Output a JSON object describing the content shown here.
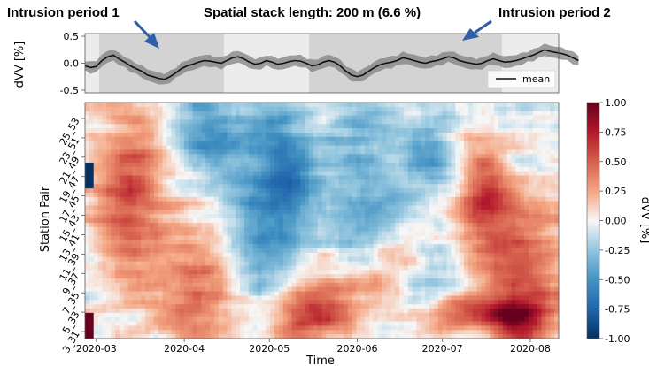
{
  "annotations": {
    "left": "Intrusion period 1",
    "center": "Spatial stack length: 200 m (6.6 %)",
    "right": "Intrusion period 2"
  },
  "colors": {
    "arrow": "#2f5fa7",
    "band": "#808080",
    "mean_line": "#111111",
    "shade_dark": "#d3d3d3",
    "shade_light": "#ececec",
    "cmap_neg": "#053061",
    "cmap_mid": "#f7f7f7",
    "cmap_pos": "#67001f"
  },
  "chart_data": [
    {
      "type": "line",
      "panel": "top",
      "ylabel": "dVV [%]",
      "ylim": [
        -0.55,
        0.55
      ],
      "y_ticks": [
        "0.5",
        "0.0",
        "-0.5"
      ],
      "y_tick_values": [
        0.5,
        0.0,
        -0.5
      ],
      "x_range": [
        "2020-02-26",
        "2020-08-11"
      ],
      "shaded_periods": [
        {
          "start": "2020-03-02",
          "end": "2020-04-15",
          "tone": "dark"
        },
        {
          "start": "2020-04-15",
          "end": "2020-05-15",
          "tone": "light"
        },
        {
          "start": "2020-05-15",
          "end": "2020-07-22",
          "tone": "dark"
        },
        {
          "start": "2020-07-22",
          "end": "2020-08-11",
          "tone": "light"
        }
      ],
      "legend": {
        "label": "mean",
        "placement": "lower-right"
      },
      "series": [
        {
          "name": "mean",
          "x_start": "2020-02-26",
          "step_days": 2,
          "values": [
            -0.05,
            -0.08,
            -0.06,
            0.05,
            0.12,
            0.15,
            0.08,
            0.02,
            -0.05,
            -0.1,
            -0.15,
            -0.22,
            -0.25,
            -0.28,
            -0.3,
            -0.25,
            -0.18,
            -0.1,
            -0.05,
            -0.02,
            0.02,
            0.05,
            0.04,
            0.02,
            0.0,
            0.05,
            0.1,
            0.12,
            0.08,
            0.02,
            -0.02,
            0.0,
            0.05,
            0.02,
            -0.02,
            0.0,
            0.03,
            0.05,
            0.04,
            0.0,
            -0.05,
            -0.03,
            0.02,
            0.05,
            0.02,
            -0.05,
            -0.15,
            -0.22,
            -0.25,
            -0.22,
            -0.15,
            -0.08,
            -0.03,
            0.0,
            0.02,
            0.05,
            0.1,
            0.08,
            0.05,
            0.02,
            0.0,
            0.03,
            0.05,
            0.08,
            0.12,
            0.1,
            0.05,
            0.02,
            0.0,
            -0.02,
            0.0,
            0.05,
            0.08,
            0.05,
            0.02,
            0.03,
            0.05,
            0.08,
            0.12,
            0.15,
            0.2,
            0.25,
            0.22,
            0.2,
            0.18,
            0.15,
            0.1,
            0.05
          ],
          "band_halfwidth": 0.1
        }
      ]
    },
    {
      "type": "heatmap",
      "panel": "bottom",
      "ylabel": "Station Pair",
      "xlabel": "Time",
      "x_range": [
        "2020-02-26",
        "2020-08-11"
      ],
      "x_ticks": [
        "2020-03",
        "2020-04",
        "2020-05",
        "2020-06",
        "2020-07",
        "2020-08"
      ],
      "x_tick_dates": [
        "2020-03-01",
        "2020-04-01",
        "2020-05-01",
        "2020-06-01",
        "2020-07-01",
        "2020-08-01"
      ],
      "y_ticks": [
        "3_31",
        "5_33",
        "7_35",
        "9_37",
        "11_39",
        "13_41",
        "15_43",
        "17_45",
        "19_47",
        "21_49",
        "23_51",
        "25_53"
      ],
      "rows": 55,
      "cols": 110,
      "seed": 7,
      "clim": [
        -1.0,
        1.0
      ],
      "colorbar": {
        "label": "dVV [%]",
        "ticks": [
          "1.00",
          "0.75",
          "0.50",
          "0.25",
          "0.00",
          "-0.25",
          "-0.50",
          "-0.75",
          "-1.00"
        ],
        "tick_values": [
          1.0,
          0.75,
          0.5,
          0.25,
          0.0,
          -0.25,
          -0.5,
          -0.75,
          -1.0
        ]
      },
      "features": [
        {
          "col": 0.25,
          "row": 0.1,
          "sc": 0.05,
          "sr": 0.15,
          "amp": -0.45
        },
        {
          "col": 0.09,
          "row": 0.4,
          "sc": 0.05,
          "sr": 0.25,
          "amp": 0.55
        },
        {
          "col": 0.24,
          "row": 0.78,
          "sc": 0.07,
          "sr": 0.22,
          "amp": 0.45
        },
        {
          "col": 0.36,
          "row": 0.5,
          "sc": 0.06,
          "sr": 0.35,
          "amp": -0.45
        },
        {
          "col": 0.43,
          "row": 0.3,
          "sc": 0.04,
          "sr": 0.18,
          "amp": -0.5
        },
        {
          "col": 0.47,
          "row": 0.88,
          "sc": 0.07,
          "sr": 0.1,
          "amp": 0.6
        },
        {
          "col": 0.58,
          "row": 0.35,
          "sc": 0.06,
          "sr": 0.28,
          "amp": -0.4
        },
        {
          "col": 0.63,
          "row": 0.72,
          "sc": 0.07,
          "sr": 0.1,
          "amp": 0.35
        },
        {
          "col": 0.72,
          "row": 0.2,
          "sc": 0.04,
          "sr": 0.1,
          "amp": -0.4
        },
        {
          "col": 0.78,
          "row": 0.88,
          "sc": 0.05,
          "sr": 0.06,
          "amp": 0.45
        },
        {
          "col": 0.84,
          "row": 0.38,
          "sc": 0.04,
          "sr": 0.15,
          "amp": 0.55
        },
        {
          "col": 0.92,
          "row": 0.6,
          "sc": 0.06,
          "sr": 0.28,
          "amp": 0.6
        },
        {
          "col": 0.93,
          "row": 0.3,
          "sc": 0.05,
          "sr": 0.18,
          "amp": -0.3
        },
        {
          "col": 0.9,
          "row": 0.9,
          "sc": 0.05,
          "sr": 0.06,
          "amp": 0.8
        },
        {
          "col": 0.72,
          "row": 0.75,
          "sc": 0.05,
          "sr": 0.1,
          "amp": -0.35
        }
      ]
    }
  ]
}
